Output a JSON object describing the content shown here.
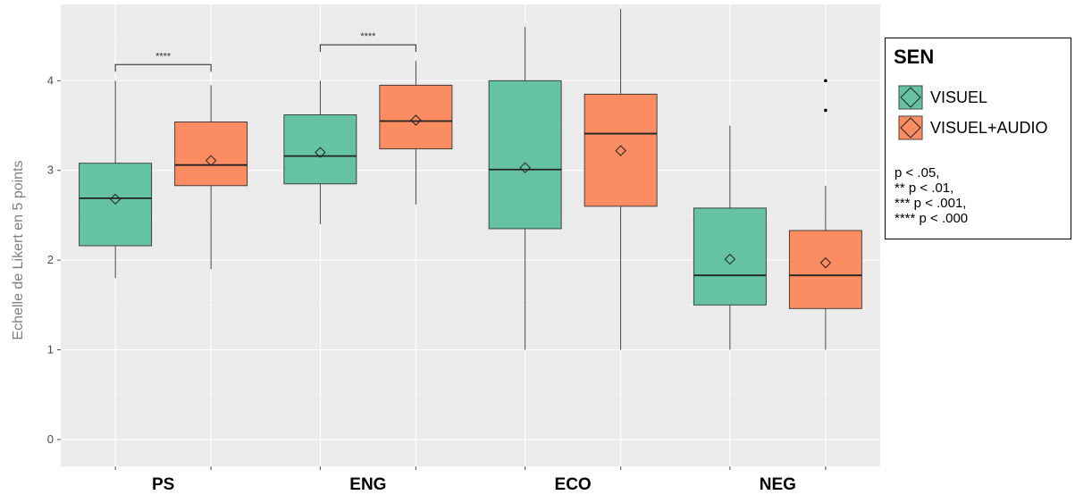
{
  "chart_data": {
    "type": "boxplot",
    "ylabel": "Echelle de Likert en 5 points",
    "ylim": [
      -0.3,
      4.85
    ],
    "yticks": [
      "0",
      "1",
      "2",
      "3",
      "4"
    ],
    "grid": true,
    "legend_position": "right",
    "categories": [
      "PS",
      "ENG",
      "ECO",
      "NEG"
    ],
    "series": [
      {
        "name": "VISUEL",
        "color": "#66c2a5",
        "boxes": [
          {
            "min": 1.8,
            "q1": 2.16,
            "median": 2.69,
            "q3": 3.08,
            "max": 4.0,
            "mean": 2.68,
            "outliers": []
          },
          {
            "min": 2.4,
            "q1": 2.85,
            "median": 3.16,
            "q3": 3.62,
            "max": 4.0,
            "mean": 3.2,
            "outliers": []
          },
          {
            "min": 1.0,
            "q1": 2.35,
            "median": 3.01,
            "q3": 4.0,
            "max": 4.6,
            "mean": 3.03,
            "outliers": []
          },
          {
            "min": 1.0,
            "q1": 1.5,
            "median": 1.83,
            "q3": 2.58,
            "max": 3.5,
            "mean": 2.01,
            "outliers": []
          }
        ]
      },
      {
        "name": "VISUEL+AUDIO",
        "color": "#fc8d62",
        "boxes": [
          {
            "min": 1.9,
            "q1": 2.83,
            "median": 3.06,
            "q3": 3.54,
            "max": 3.95,
            "mean": 3.11,
            "outliers": []
          },
          {
            "min": 2.62,
            "q1": 3.24,
            "median": 3.55,
            "q3": 3.95,
            "max": 4.22,
            "mean": 3.56,
            "outliers": []
          },
          {
            "min": 1.0,
            "q1": 2.6,
            "median": 3.41,
            "q3": 3.85,
            "max": 4.8,
            "mean": 3.22,
            "outliers": []
          },
          {
            "min": 1.0,
            "q1": 1.46,
            "median": 1.83,
            "q3": 2.33,
            "max": 2.83,
            "mean": 1.97,
            "outliers": [
              3.67,
              4.0
            ]
          }
        ]
      }
    ],
    "annotations": [
      {
        "category": "PS",
        "text": "****",
        "y": 4.18
      },
      {
        "category": "ENG",
        "text": "****",
        "y": 4.4
      }
    ]
  },
  "legend": {
    "title": "SEN",
    "items": [
      {
        "label": "VISUEL",
        "color": "#66c2a5"
      },
      {
        "label": "VISUEL+AUDIO",
        "color": "#fc8d62"
      }
    ],
    "notes": [
      "p < .05,",
      "** p < .01,",
      "*** p < .001,",
      "**** p < .000"
    ]
  }
}
